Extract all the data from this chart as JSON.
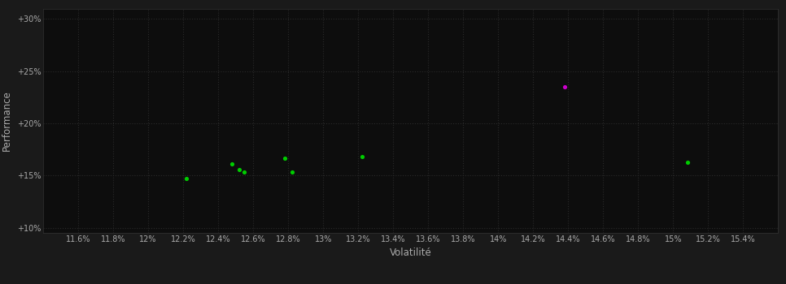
{
  "background_color": "#1a1a1a",
  "plot_bg_color": "#0d0d0d",
  "grid_color": "#2a2a2a",
  "xlabel": "Volatilité",
  "ylabel": "Performance",
  "xlim": [
    11.4,
    15.6
  ],
  "ylim": [
    9.5,
    31.0
  ],
  "xticks": [
    11.6,
    11.8,
    12.0,
    12.2,
    12.4,
    12.6,
    12.8,
    13.0,
    13.2,
    13.4,
    13.6,
    13.8,
    14.0,
    14.2,
    14.4,
    14.6,
    14.8,
    15.0,
    15.2,
    15.4
  ],
  "xtick_labels": [
    "11.6%",
    "11.8%",
    "12%",
    "12.2%",
    "12.4%",
    "12.6%",
    "12.8%",
    "13%",
    "13.2%",
    "13.4%",
    "13.6%",
    "13.8%",
    "14%",
    "14.2%",
    "14.4%",
    "14.6%",
    "14.8%",
    "15%",
    "15.2%",
    "15.4%"
  ],
  "yticks": [
    10,
    15,
    20,
    25,
    30
  ],
  "ytick_labels": [
    "+10%",
    "+15%",
    "+20%",
    "+25%",
    "+30%"
  ],
  "green_dots": [
    [
      12.22,
      14.7
    ],
    [
      12.48,
      16.1
    ],
    [
      12.52,
      15.6
    ],
    [
      12.55,
      15.3
    ],
    [
      12.78,
      16.65
    ],
    [
      12.82,
      15.35
    ],
    [
      13.22,
      16.8
    ],
    [
      15.08,
      16.3
    ]
  ],
  "magenta_dot": [
    14.38,
    23.5
  ],
  "green_color": "#00cc00",
  "magenta_color": "#cc00cc",
  "text_color": "#aaaaaa",
  "tick_fontsize": 7,
  "label_fontsize": 8.5,
  "dot_size": 14
}
